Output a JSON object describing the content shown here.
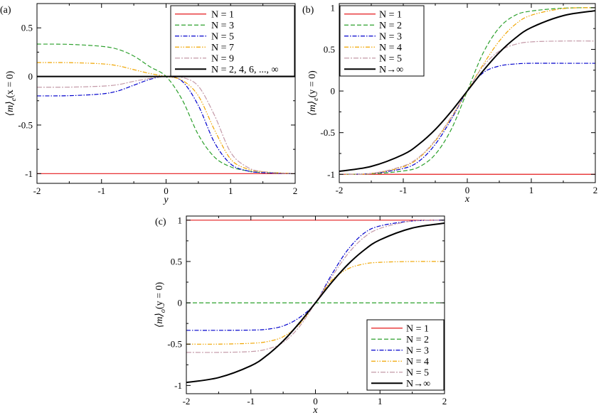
{
  "figure": {
    "styles": {
      "red": {
        "color": "#e41a1c",
        "dash": "",
        "width": 1.2
      },
      "green": {
        "color": "#2ca02c",
        "dash": "6,3",
        "width": 1.2
      },
      "blue": {
        "color": "#0000cc",
        "dash": "6,2,1.5,2",
        "width": 1.2
      },
      "orange": {
        "color": "#f0a500",
        "dash": "6,2,1.5,2,1.5,2",
        "width": 1.2
      },
      "pink": {
        "color": "#c49aa8",
        "dash": "7,2,2,2",
        "width": 1.2
      },
      "black": {
        "color": "#000000",
        "dash": "",
        "width": 2.0
      }
    }
  },
  "chart_data": [
    {
      "id": "a",
      "type": "line",
      "panel_label": "(a)",
      "xlabel": "y",
      "ylabel": "⟨m⟩e(x = 0)",
      "ylabel_main": "⟨m⟩",
      "ylabel_sub": "e",
      "ylabel_tail": "(x = 0)",
      "xlim": [
        -2,
        2
      ],
      "ylim": [
        -1.1,
        0.75
      ],
      "xticks": [
        -2,
        -1,
        0,
        1,
        2
      ],
      "xtick_labels": [
        "-2",
        "-1",
        "0",
        "1",
        "2"
      ],
      "yticks": [
        -1,
        -0.5,
        0,
        0.5
      ],
      "ytick_labels": [
        "-1",
        "-0.5",
        "0",
        "0.5"
      ],
      "legend_position": "top-right",
      "series": [
        {
          "name": "N = 1",
          "style": "red",
          "x": [
            -2,
            2
          ],
          "y": [
            -1,
            -1
          ]
        },
        {
          "name": "N = 3",
          "style": "green",
          "x": [
            -2,
            -1.5,
            -1,
            -0.75,
            -0.5,
            -0.25,
            0,
            0.25,
            0.5,
            0.75,
            1,
            1.25,
            1.5,
            2
          ],
          "y": [
            0.333,
            0.33,
            0.31,
            0.28,
            0.21,
            0.1,
            0,
            -0.24,
            -0.6,
            -0.83,
            -0.93,
            -0.97,
            -0.99,
            -1
          ]
        },
        {
          "name": "N = 5",
          "style": "blue",
          "x": [
            -2,
            -1.5,
            -1,
            -0.75,
            -0.5,
            -0.25,
            0,
            0.25,
            0.5,
            0.75,
            1,
            1.25,
            1.5,
            2
          ],
          "y": [
            -0.2,
            -0.198,
            -0.18,
            -0.15,
            -0.09,
            -0.03,
            0,
            -0.05,
            -0.3,
            -0.68,
            -0.9,
            -0.97,
            -0.99,
            -1
          ]
        },
        {
          "name": "N = 7",
          "style": "orange",
          "x": [
            -2,
            -1.5,
            -1,
            -0.75,
            -0.5,
            -0.25,
            0,
            0.25,
            0.5,
            0.75,
            1,
            1.25,
            1.5,
            2
          ],
          "y": [
            0.143,
            0.142,
            0.13,
            0.11,
            0.07,
            0.03,
            0,
            -0.04,
            -0.2,
            -0.55,
            -0.85,
            -0.95,
            -0.98,
            -1
          ]
        },
        {
          "name": "N = 9",
          "style": "pink",
          "x": [
            -2,
            -1.5,
            -1,
            -0.75,
            -0.5,
            -0.25,
            0,
            0.25,
            0.5,
            0.75,
            1,
            1.25,
            1.5,
            2
          ],
          "y": [
            -0.111,
            -0.11,
            -0.1,
            -0.085,
            -0.05,
            -0.02,
            0,
            -0.01,
            -0.1,
            -0.4,
            -0.78,
            -0.93,
            -0.98,
            -1
          ]
        },
        {
          "name": "N = 2, 4, 6, ..., ∞",
          "style": "black",
          "x": [
            -2,
            2
          ],
          "y": [
            0,
            0
          ]
        }
      ]
    },
    {
      "id": "b",
      "type": "line",
      "panel_label": "(b)",
      "xlabel": "x",
      "ylabel": "⟨m⟩e(y = 0)",
      "ylabel_main": "⟨m⟩",
      "ylabel_sub": "e",
      "ylabel_tail": "(y = 0)",
      "xlim": [
        -2,
        2
      ],
      "ylim": [
        -1.1,
        1.05
      ],
      "xticks": [
        -2,
        -1,
        0,
        1,
        2
      ],
      "xtick_labels": [
        "-2",
        "-1",
        "0",
        "1",
        "2"
      ],
      "yticks": [
        -1,
        -0.5,
        0,
        0.5,
        1
      ],
      "ytick_labels": [
        "-1",
        "-0.5",
        "0",
        "0.5",
        "1"
      ],
      "legend_position": "top-left",
      "series": [
        {
          "name": "N = 1",
          "style": "red",
          "x": [
            -2,
            2
          ],
          "y": [
            -1,
            -1
          ]
        },
        {
          "name": "N = 2",
          "style": "green",
          "x": [
            -2,
            -1.5,
            -1,
            -0.75,
            -0.5,
            -0.25,
            0,
            0.25,
            0.5,
            0.75,
            1,
            1.5,
            2
          ],
          "y": [
            -1,
            -0.995,
            -0.96,
            -0.91,
            -0.76,
            -0.46,
            0,
            0.46,
            0.76,
            0.91,
            0.96,
            0.995,
            1
          ]
        },
        {
          "name": "N = 3",
          "style": "blue",
          "x": [
            -2,
            -1.5,
            -1,
            -0.75,
            -0.5,
            -0.25,
            0,
            0.25,
            0.5,
            0.75,
            1,
            1.5,
            2
          ],
          "y": [
            -1,
            -0.99,
            -0.93,
            -0.84,
            -0.64,
            -0.34,
            0,
            0.22,
            0.3,
            0.325,
            0.333,
            0.333,
            0.333
          ]
        },
        {
          "name": "N = 4",
          "style": "orange",
          "x": [
            -2,
            -1.5,
            -1,
            -0.75,
            -0.5,
            -0.25,
            0,
            0.25,
            0.5,
            0.75,
            1,
            1.5,
            2
          ],
          "y": [
            -1,
            -0.99,
            -0.91,
            -0.8,
            -0.6,
            -0.32,
            0,
            0.32,
            0.6,
            0.8,
            0.91,
            0.99,
            1
          ]
        },
        {
          "name": "N = 5",
          "style": "pink",
          "x": [
            -2,
            -1.5,
            -1,
            -0.75,
            -0.5,
            -0.25,
            0,
            0.25,
            0.5,
            0.75,
            1,
            1.5,
            2
          ],
          "y": [
            -1,
            -0.99,
            -0.9,
            -0.79,
            -0.59,
            -0.31,
            0,
            0.3,
            0.48,
            0.56,
            0.59,
            0.6,
            0.6
          ]
        },
        {
          "name": "N→∞",
          "style": "black",
          "x": [
            -2,
            -1.5,
            -1,
            -0.75,
            -0.5,
            -0.25,
            0,
            0.25,
            0.5,
            0.75,
            1,
            1.5,
            2
          ],
          "y": [
            -0.964,
            -0.905,
            -0.762,
            -0.635,
            -0.462,
            -0.245,
            0,
            0.245,
            0.462,
            0.635,
            0.762,
            0.905,
            0.964
          ]
        }
      ]
    },
    {
      "id": "c",
      "type": "line",
      "panel_label": "(c)",
      "xlabel": "x",
      "ylabel": "⟨m⟩o(y = 0)",
      "ylabel_main": "⟨m⟩",
      "ylabel_sub": "o",
      "ylabel_tail": "(y = 0)",
      "xlim": [
        -2,
        2
      ],
      "ylim": [
        -1.1,
        1.05
      ],
      "xticks": [
        -2,
        -1,
        0,
        1,
        2
      ],
      "xtick_labels": [
        "-2",
        "-1",
        "0",
        "1",
        "2"
      ],
      "yticks": [
        -1,
        -0.5,
        0,
        0.5,
        1
      ],
      "ytick_labels": [
        "-1",
        "-0.5",
        "0",
        "0.5",
        "1"
      ],
      "legend_position": "bottom-right",
      "series": [
        {
          "name": "N = 1",
          "style": "red",
          "x": [
            -2,
            2
          ],
          "y": [
            1,
            1
          ]
        },
        {
          "name": "N = 2",
          "style": "green",
          "x": [
            -2,
            2
          ],
          "y": [
            0,
            0
          ]
        },
        {
          "name": "N = 3",
          "style": "blue",
          "x": [
            -2,
            -1.5,
            -1,
            -0.75,
            -0.5,
            -0.25,
            0,
            0.25,
            0.5,
            0.75,
            1,
            1.5,
            2
          ],
          "y": [
            -0.333,
            -0.333,
            -0.33,
            -0.32,
            -0.28,
            -0.18,
            0,
            0.34,
            0.64,
            0.84,
            0.93,
            0.99,
            1
          ]
        },
        {
          "name": "N = 4",
          "style": "orange",
          "x": [
            -2,
            -1.5,
            -1,
            -0.75,
            -0.5,
            -0.25,
            0,
            0.25,
            0.5,
            0.75,
            1,
            1.5,
            2
          ],
          "y": [
            -0.5,
            -0.5,
            -0.49,
            -0.47,
            -0.41,
            -0.26,
            0,
            0.27,
            0.41,
            0.47,
            0.49,
            0.5,
            0.5
          ]
        },
        {
          "name": "N = 5",
          "style": "pink",
          "x": [
            -2,
            -1.5,
            -1,
            -0.75,
            -0.5,
            -0.25,
            0,
            0.25,
            0.5,
            0.75,
            1,
            1.5,
            2
          ],
          "y": [
            -0.6,
            -0.6,
            -0.59,
            -0.56,
            -0.48,
            -0.29,
            0,
            0.31,
            0.59,
            0.79,
            0.9,
            0.99,
            1
          ]
        },
        {
          "name": "N→∞",
          "style": "black",
          "x": [
            -2,
            -1.5,
            -1,
            -0.75,
            -0.5,
            -0.25,
            0,
            0.25,
            0.5,
            0.75,
            1,
            1.5,
            2
          ],
          "y": [
            -0.964,
            -0.905,
            -0.762,
            -0.635,
            -0.462,
            -0.245,
            0,
            0.245,
            0.462,
            0.635,
            0.762,
            0.905,
            0.964
          ]
        }
      ]
    }
  ]
}
